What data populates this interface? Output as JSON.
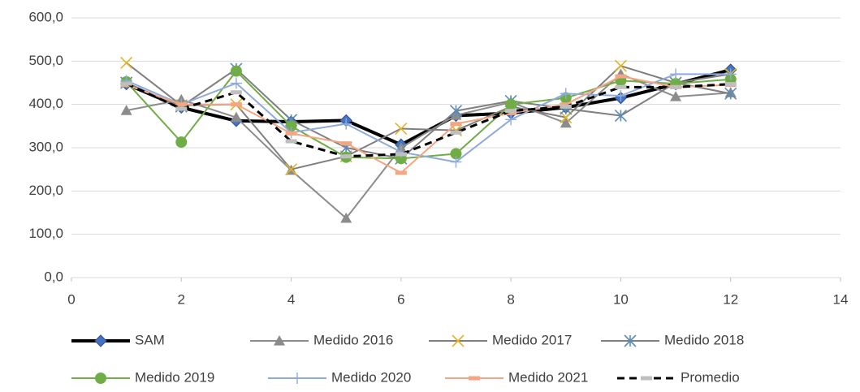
{
  "chart_data": {
    "type": "line",
    "x": [
      1,
      2,
      3,
      4,
      5,
      6,
      7,
      8,
      9,
      10,
      11,
      12
    ],
    "xlim": [
      0,
      14
    ],
    "xticks": [
      0,
      2,
      4,
      6,
      8,
      10,
      12,
      14
    ],
    "ylim": [
      0,
      600
    ],
    "yticks": [
      {
        "value": 0,
        "label": "0,0"
      },
      {
        "value": 100,
        "label": "100,0"
      },
      {
        "value": 200,
        "label": "200,0"
      },
      {
        "value": 300,
        "label": "300,0"
      },
      {
        "value": 400,
        "label": "400,0"
      },
      {
        "value": 500,
        "label": "500,0"
      },
      {
        "value": 600,
        "label": "600,0"
      }
    ],
    "grid": true,
    "legend": "bottom",
    "series": [
      {
        "name": "SAM",
        "color": "#000000",
        "marker": "diamond",
        "marker_color": "#4472c4",
        "line_width": 4,
        "values": [
          447,
          393,
          362,
          360,
          363,
          307,
          374,
          380,
          393,
          415,
          447,
          480
        ]
      },
      {
        "name": "Medido 2016",
        "color": "#8c8c8c",
        "marker": "triangle",
        "marker_color": "#8c8c8c",
        "line_width": 2,
        "values": [
          386,
          411,
          370,
          248,
          137,
          300,
          375,
          405,
          357,
          470,
          418,
          427
        ]
      },
      {
        "name": "Medido 2017",
        "color": "#7f7f7f",
        "marker": "x",
        "marker_color": "#e6b422",
        "line_width": 2,
        "values": [
          496,
          398,
          400,
          250,
          280,
          344,
          340,
          395,
          370,
          489,
          450,
          470
        ]
      },
      {
        "name": "Medido 2018",
        "color": "#7f7f7f",
        "marker": "asterisk",
        "marker_color": "#5b8db8",
        "line_width": 2,
        "values": [
          450,
          395,
          482,
          364,
          300,
          275,
          385,
          408,
          390,
          374,
          450,
          425
        ]
      },
      {
        "name": "Medido 2019",
        "color": "#70ad47",
        "marker": "circle",
        "marker_color": "#70ad47",
        "line_width": 2,
        "values": [
          452,
          313,
          477,
          350,
          278,
          275,
          286,
          400,
          415,
          455,
          448,
          458
        ]
      },
      {
        "name": "Medido 2020",
        "color": "#8faadc",
        "marker": "plus",
        "marker_color": "#8faadc",
        "line_width": 2,
        "values": [
          455,
          400,
          449,
          335,
          355,
          290,
          267,
          365,
          425,
          420,
          470,
          470
        ]
      },
      {
        "name": "Medido 2021",
        "color": "#f4a582",
        "marker": "dash",
        "marker_color": "#f4a582",
        "line_width": 2,
        "values": [
          445,
          400,
          400,
          333,
          310,
          242,
          355,
          380,
          400,
          465,
          440,
          445
        ]
      },
      {
        "name": "Promedio",
        "color": "#000000",
        "marker": "dash",
        "marker_color": "#bfbfbf",
        "line_width": 3,
        "dash": true,
        "values": [
          448,
          390,
          428,
          315,
          280,
          285,
          335,
          385,
          395,
          440,
          440,
          447
        ]
      }
    ]
  }
}
